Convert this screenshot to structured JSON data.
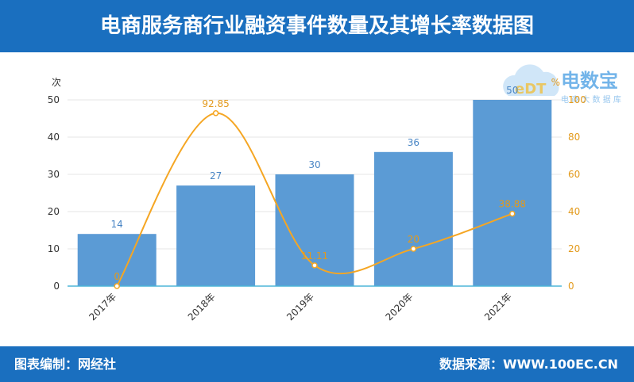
{
  "header": {
    "title": "电商服务商行业融资事件数量及其增长率数据图"
  },
  "footer": {
    "left": "图表编制：网经社",
    "right": "数据来源：WWW.100EC.CN"
  },
  "watermark": {
    "brand": "电数宝",
    "sub": "电 商 大 数 据 库",
    "logo_text": "eDT"
  },
  "colors": {
    "header": "#1a6fbf",
    "bar": "#5b9bd5",
    "line": "#f5a623",
    "grid": "#e6e6e6"
  },
  "chart_data": {
    "type": "bar",
    "categories": [
      "2017年",
      "2018年",
      "2019年",
      "2020年",
      "2021年"
    ],
    "series": [
      {
        "type": "bar",
        "axis": "left",
        "values": [
          14,
          27,
          30,
          36,
          50
        ]
      },
      {
        "type": "line",
        "axis": "right",
        "smooth": true,
        "values": [
          0,
          92.85,
          11.11,
          20,
          38.88
        ]
      }
    ],
    "y_left": {
      "label": "次",
      "range": [
        0,
        50
      ],
      "ticks": [
        0,
        10,
        20,
        30,
        40,
        50
      ]
    },
    "y_right": {
      "label": "%",
      "range": [
        0,
        100
      ],
      "ticks": [
        0,
        20,
        40,
        60,
        80,
        100
      ]
    },
    "grid": true
  }
}
